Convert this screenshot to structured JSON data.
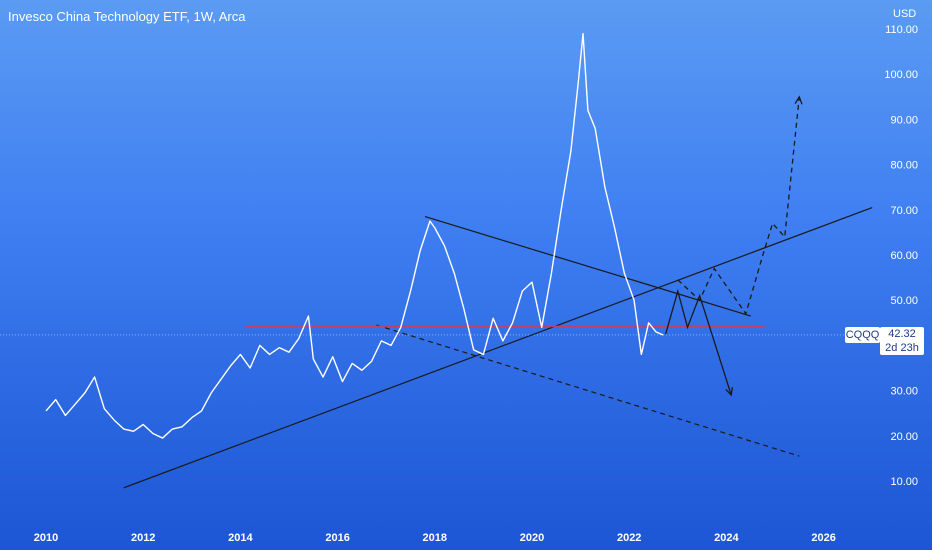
{
  "title": "Invesco China Technology ETF, 1W, Arca",
  "currency": "USD",
  "ticker": "CQQQ",
  "last_price": "42.32",
  "countdown": "2d 23h",
  "colors": {
    "price_line": "#ffffff",
    "trendline": "#1a1a1a",
    "support_line": "#b84466",
    "box": "#ffffff",
    "box_text": "#1e3a8a"
  },
  "chart_data": {
    "type": "line",
    "title": "Invesco China Technology ETF, 1W, Arca",
    "xlabel": "",
    "ylabel": "",
    "y_unit": "USD",
    "y_ticks": [
      "10.00",
      "20.00",
      "30.00",
      "40.00",
      "50.00",
      "60.00",
      "70.00",
      "80.00",
      "90.00",
      "100.00",
      "110.00"
    ],
    "x_ticks": [
      "2010",
      "2012",
      "2014",
      "2016",
      "2018",
      "2020",
      "2022",
      "2024",
      "2026"
    ],
    "xlim": [
      2009.5,
      2027.5
    ],
    "ylim": [
      0,
      113
    ],
    "grid": false,
    "series": [
      {
        "name": "CQQQ",
        "x": [
          2010.0,
          2010.2,
          2010.4,
          2010.6,
          2010.8,
          2011.0,
          2011.2,
          2011.4,
          2011.6,
          2011.8,
          2012.0,
          2012.2,
          2012.4,
          2012.6,
          2012.8,
          2013.0,
          2013.2,
          2013.4,
          2013.6,
          2013.8,
          2014.0,
          2014.2,
          2014.4,
          2014.6,
          2014.8,
          2015.0,
          2015.2,
          2015.4,
          2015.5,
          2015.7,
          2015.9,
          2016.1,
          2016.3,
          2016.5,
          2016.7,
          2016.9,
          2017.1,
          2017.3,
          2017.5,
          2017.7,
          2017.9,
          2018.0,
          2018.2,
          2018.4,
          2018.6,
          2018.8,
          2019.0,
          2019.2,
          2019.4,
          2019.6,
          2019.8,
          2020.0,
          2020.2,
          2020.4,
          2020.6,
          2020.8,
          2020.95,
          2021.05,
          2021.15,
          2021.3,
          2021.5,
          2021.7,
          2021.9,
          2022.1,
          2022.25,
          2022.4,
          2022.55,
          2022.7
        ],
        "values": [
          25.5,
          28.0,
          24.5,
          27.0,
          29.5,
          33.0,
          26.0,
          23.5,
          21.5,
          21.0,
          22.5,
          20.5,
          19.5,
          21.5,
          22.0,
          24.0,
          25.5,
          29.5,
          32.5,
          35.5,
          38.0,
          35.0,
          40.0,
          38.0,
          39.5,
          38.5,
          41.5,
          46.5,
          37.0,
          33.0,
          37.5,
          32.0,
          36.0,
          34.5,
          36.5,
          41.0,
          40.0,
          44.0,
          52.0,
          61.0,
          67.5,
          66.0,
          62.0,
          56.0,
          48.0,
          39.0,
          38.0,
          46.0,
          41.0,
          45.0,
          52.0,
          54.0,
          44.0,
          56.0,
          70.0,
          83.0,
          98.0,
          109.0,
          92.0,
          88.0,
          75.0,
          66.0,
          56.0,
          50.0,
          38.0,
          45.0,
          43.0,
          42.3
        ]
      }
    ],
    "annotations": {
      "lines": [
        {
          "style": "solid",
          "from": [
            2011.6,
            8.5
          ],
          "to": [
            2027.0,
            70.5
          ]
        },
        {
          "style": "solid",
          "from": [
            2017.8,
            68.5
          ],
          "to": [
            2024.5,
            46.5
          ]
        },
        {
          "style": "dashed",
          "from": [
            2016.8,
            44.5
          ],
          "to": [
            2025.5,
            15.5
          ]
        },
        {
          "style": "support",
          "from": [
            2014.1,
            44.2
          ],
          "to": [
            2024.8,
            44.2
          ]
        }
      ],
      "paths": [
        {
          "style": "solid",
          "points": [
            [
              2022.75,
              42.5
            ],
            [
              2023.0,
              52.0
            ],
            [
              2023.2,
              44.0
            ],
            [
              2023.45,
              51.0
            ],
            [
              2024.1,
              29.0
            ]
          ]
        },
        {
          "style": "dashed",
          "points": [
            [
              2023.0,
              54.5
            ],
            [
              2023.45,
              50.0
            ],
            [
              2023.75,
              57.0
            ],
            [
              2024.4,
              47.0
            ],
            [
              2024.75,
              60.0
            ],
            [
              2024.95,
              67.0
            ],
            [
              2025.2,
              64.0
            ],
            [
              2025.5,
              95.0
            ]
          ]
        }
      ]
    }
  }
}
